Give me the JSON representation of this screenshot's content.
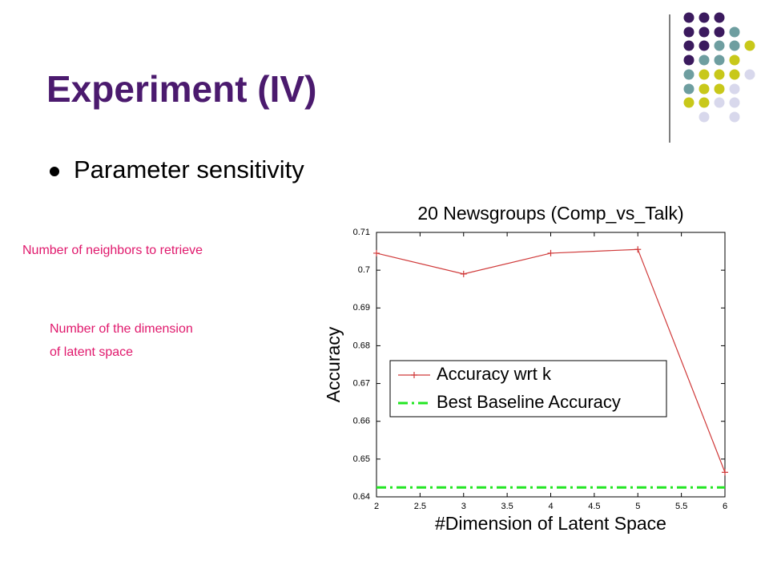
{
  "slide": {
    "title": "Experiment (IV)",
    "bullet": "Parameter sensitivity",
    "annotations": [
      [
        "Number of neighbors to retrieve"
      ],
      [
        "Number of the dimension",
        "of latent space"
      ]
    ]
  },
  "chart_data": {
    "type": "line",
    "title": "20 Newsgroups (Comp_vs_Talk)",
    "x_label": "#Dimension of Latent Space",
    "y_label": "Accuracy",
    "x": [
      2,
      3,
      4,
      5,
      6
    ],
    "series": [
      {
        "name": "Accuracy wrt k",
        "color": "#d03a3a",
        "values": [
          0.7045,
          0.699,
          0.7045,
          0.7055,
          0.6465
        ],
        "marker": "+",
        "dash": "solid"
      },
      {
        "name": "Best Baseline Accuracy",
        "color": "#22e622",
        "values": [
          0.6425,
          0.6425,
          0.6425,
          0.6425,
          0.6425
        ],
        "dash": "dashdot"
      }
    ],
    "xlim": [
      2,
      6
    ],
    "xticks": [
      2,
      2.5,
      3,
      3.5,
      4,
      4.5,
      5,
      5.5,
      6
    ],
    "ylim": [
      0.64,
      0.71
    ],
    "yticks": [
      0.64,
      0.65,
      0.66,
      0.67,
      0.68,
      0.69,
      0.7,
      0.71
    ],
    "legend": "center"
  }
}
